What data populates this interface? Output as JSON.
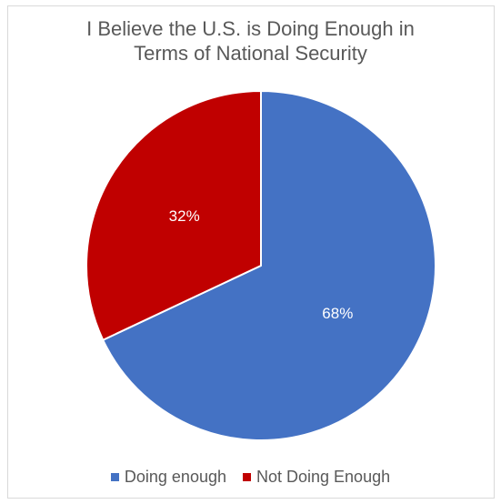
{
  "chart_data": {
    "type": "pie",
    "title_lines": [
      "I Believe the U.S. is Doing Enough in",
      "Terms of National Security"
    ],
    "categories": [
      "Doing enough",
      "Not Doing Enough"
    ],
    "values": [
      68,
      32
    ],
    "data_labels": [
      "68%",
      "32%"
    ],
    "colors": [
      "#4472c4",
      "#c00000"
    ],
    "start_angle_deg": 0,
    "direction": "clockwise",
    "legend_position": "bottom"
  }
}
